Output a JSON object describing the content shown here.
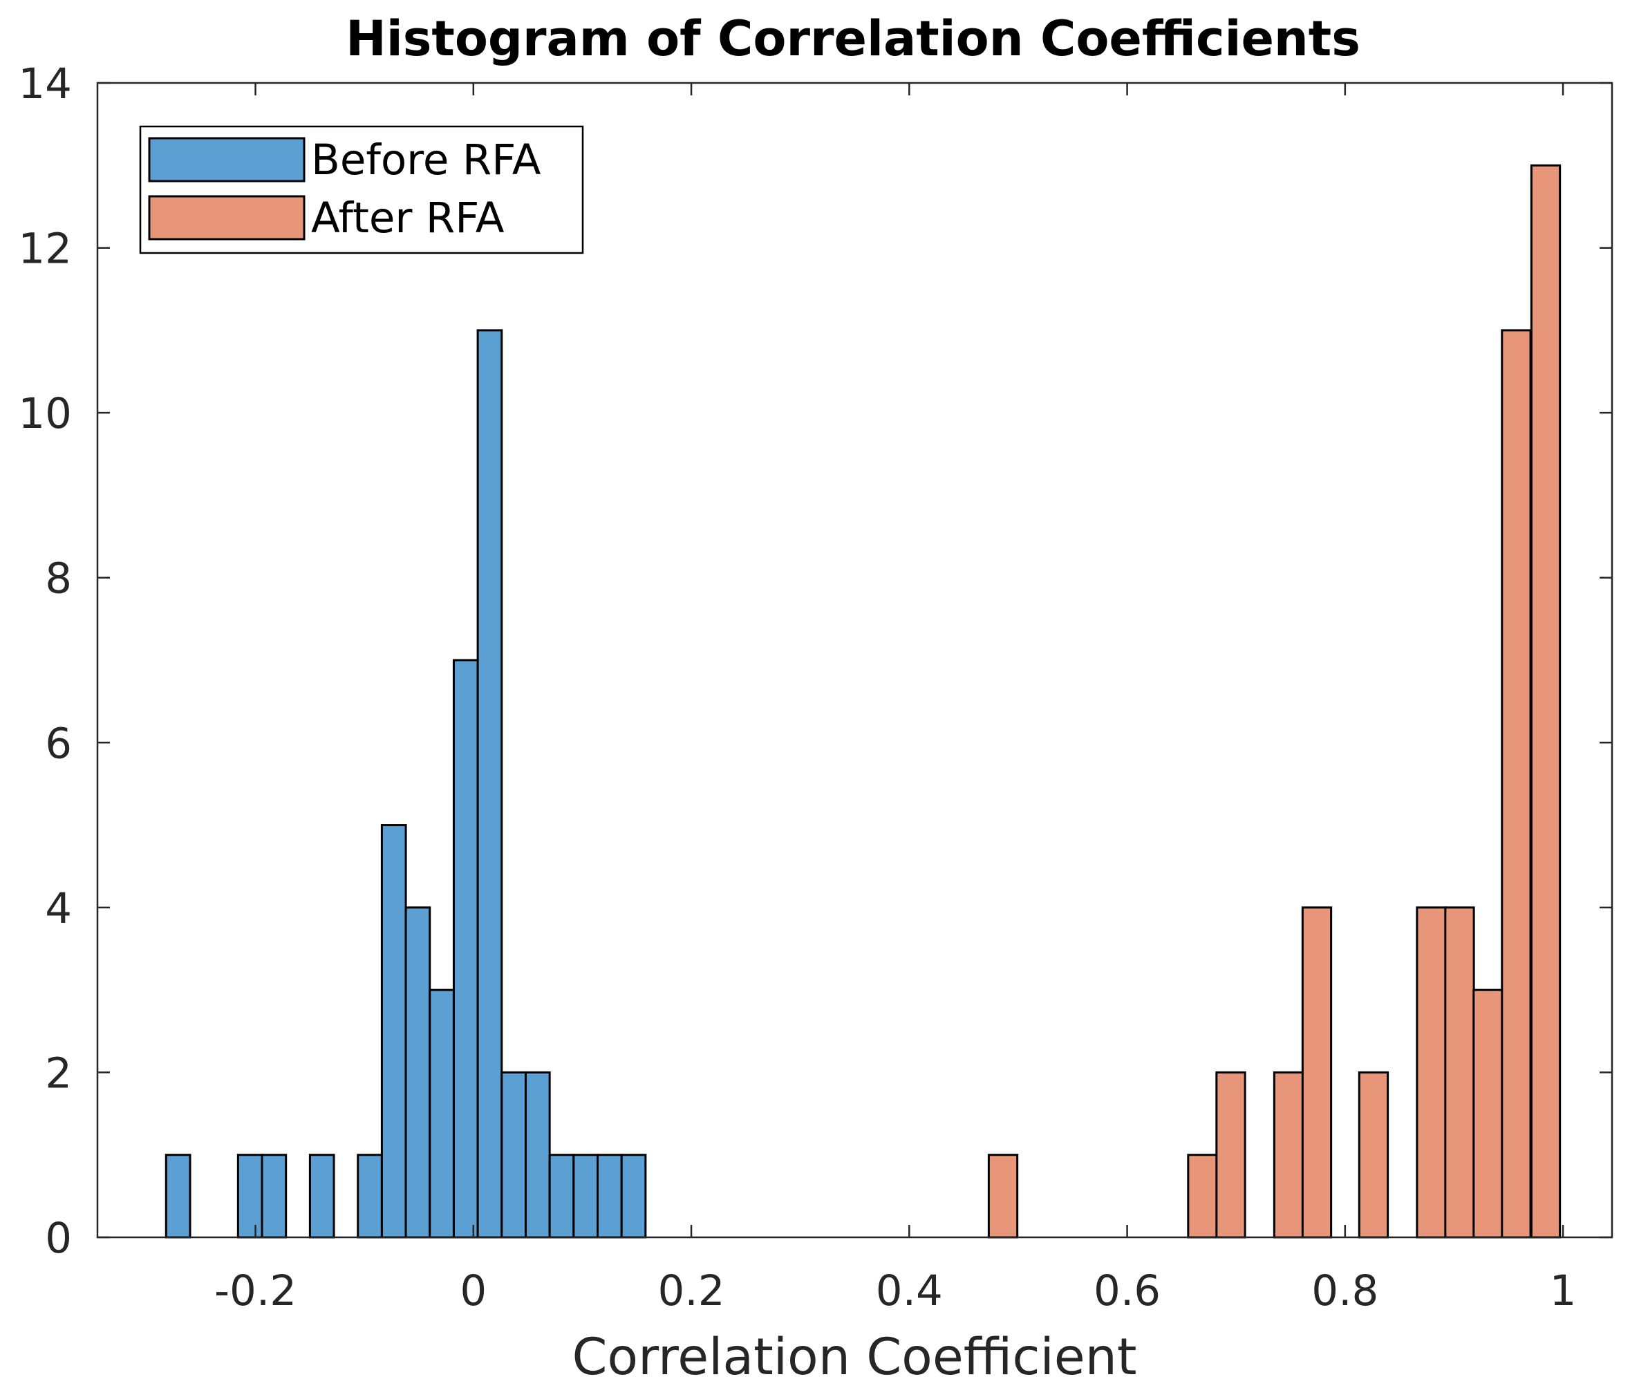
{
  "chart_data": {
    "type": "bar",
    "title": "Histogram of Correlation Coefficients",
    "xlabel": "Correlation Coefficient",
    "ylabel": "",
    "xlim": [
      -0.345,
      1.045
    ],
    "ylim": [
      0,
      14
    ],
    "xticks": [
      -0.2,
      0,
      0.2,
      0.4,
      0.6,
      0.8,
      1
    ],
    "xtick_labels": [
      "-0.2",
      "0",
      "0.2",
      "0.4",
      "0.6",
      "0.8",
      "1"
    ],
    "yticks": [
      0,
      2,
      4,
      6,
      8,
      10,
      12,
      14
    ],
    "ytick_labels": [
      "0",
      "2",
      "4",
      "6",
      "8",
      "10",
      "12",
      "14"
    ],
    "grid": false,
    "legend": {
      "position": "top-left"
    },
    "series": [
      {
        "name": "Before RFA",
        "color": "#5B9FD3",
        "bin_width": 0.022,
        "bins": [
          {
            "start": -0.282,
            "count": 1
          },
          {
            "start": -0.216,
            "count": 1
          },
          {
            "start": -0.194,
            "count": 1
          },
          {
            "start": -0.15,
            "count": 1
          },
          {
            "start": -0.106,
            "count": 1
          },
          {
            "start": -0.084,
            "count": 5
          },
          {
            "start": -0.062,
            "count": 4
          },
          {
            "start": -0.04,
            "count": 3
          },
          {
            "start": -0.018,
            "count": 7
          },
          {
            "start": 0.004,
            "count": 11
          },
          {
            "start": 0.026,
            "count": 2
          },
          {
            "start": 0.048,
            "count": 2
          },
          {
            "start": 0.07,
            "count": 1
          },
          {
            "start": 0.092,
            "count": 1
          },
          {
            "start": 0.114,
            "count": 1
          },
          {
            "start": 0.136,
            "count": 1
          }
        ]
      },
      {
        "name": "After RFA",
        "color": "#E8967A",
        "bin_width": 0.0262,
        "bins": [
          {
            "start": 0.473,
            "count": 1
          },
          {
            "start": 0.656,
            "count": 1
          },
          {
            "start": 0.682,
            "count": 2
          },
          {
            "start": 0.735,
            "count": 2
          },
          {
            "start": 0.761,
            "count": 4
          },
          {
            "start": 0.813,
            "count": 2
          },
          {
            "start": 0.866,
            "count": 4
          },
          {
            "start": 0.892,
            "count": 4
          },
          {
            "start": 0.918,
            "count": 3
          },
          {
            "start": 0.944,
            "count": 11
          },
          {
            "start": 0.971,
            "count": 13
          }
        ]
      }
    ]
  }
}
